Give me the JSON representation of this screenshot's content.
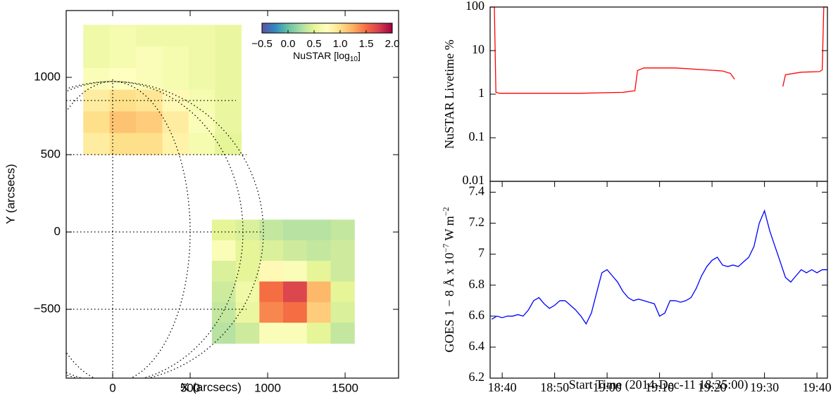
{
  "chart_data": [
    {
      "type": "heatmap",
      "x_label": "X (arcsecs)",
      "y_label": "Y (arcsecs)",
      "xlim": [
        -300,
        1845
      ],
      "ylim": [
        -945,
        1432
      ],
      "xticks": [
        0,
        500,
        1000,
        1500
      ],
      "yticks": [
        {
          "value": -500,
          "label": "−500"
        },
        0,
        500,
        1000
      ],
      "regions": [
        {
          "xlim": [
            -190,
            830
          ],
          "ylim": [
            500,
            1340
          ],
          "values": [
            [
              0.6,
              0.65,
              0.6,
              0.6,
              0.6,
              0.55
            ],
            [
              0.6,
              0.65,
              0.7,
              0.65,
              0.6,
              0.55
            ],
            [
              0.7,
              0.75,
              0.7,
              0.65,
              0.6,
              0.55
            ],
            [
              0.9,
              1.0,
              0.95,
              0.8,
              0.65,
              0.55
            ],
            [
              1.0,
              1.15,
              1.1,
              0.9,
              0.7,
              0.55
            ],
            [
              0.9,
              1.0,
              1.0,
              0.85,
              0.65,
              0.5
            ]
          ]
        },
        {
          "xlim": [
            640,
            1560
          ],
          "ylim": [
            -720,
            80
          ],
          "values": [
            [
              0.5,
              0.45,
              0.35,
              0.3,
              0.3,
              0.35
            ],
            [
              0.7,
              0.5,
              0.45,
              0.4,
              0.35,
              0.4
            ],
            [
              0.45,
              0.5,
              0.8,
              0.7,
              0.5,
              0.4
            ],
            [
              0.4,
              0.6,
              1.5,
              1.7,
              1.2,
              0.5
            ],
            [
              0.35,
              0.55,
              1.4,
              1.5,
              1.1,
              0.45
            ],
            [
              0.3,
              0.4,
              0.7,
              0.7,
              0.5,
              0.35
            ]
          ]
        }
      ],
      "colorbar": {
        "lim": [
          -0.5,
          2.0
        ],
        "ticks": [
          {
            "value": -0.5,
            "label": "−0.5"
          },
          {
            "value": 0,
            "label": "0.0"
          },
          0.5,
          {
            "value": 1,
            "label": "1.0"
          },
          1.5,
          {
            "value": 2,
            "label": "2.0"
          }
        ],
        "label": {
          "text": "NuSTAR [log",
          "subscript": "10",
          "suffix": "]"
        }
      }
    },
    {
      "type": "line",
      "log_y": true,
      "y_label": "NuSTAR Livetime %",
      "xlim": [
        2.7,
        67
      ],
      "ylim": [
        0.01,
        100
      ],
      "yticks": [
        0.01,
        0.1,
        1,
        10,
        100
      ],
      "x": [
        2.7,
        3.5,
        3.8,
        4.5,
        10,
        20,
        28,
        30.3,
        30.8,
        32,
        38,
        44,
        47,
        48.5,
        49.3,
        49.5,
        58.3,
        58.5,
        59,
        62,
        65.5,
        66,
        66.3,
        67
      ],
      "series": [
        {
          "color": "#ff0000",
          "values": [
            100,
            100,
            1.1,
            1.05,
            1.05,
            1.05,
            1.1,
            1.2,
            3.5,
            4.0,
            4.0,
            3.6,
            3.4,
            3.0,
            2.2,
            null,
            null,
            1.5,
            2.8,
            3.2,
            3.3,
            3.6,
            100,
            100
          ]
        }
      ]
    },
    {
      "type": "line",
      "x_label": "Start Time (2014-Dec-11 18:35:00)",
      "y_label": {
        "text": "GOES 1 − 8 Å x 10",
        "exp1": "−7",
        "mid": " W m",
        "exp2": "−2"
      },
      "xlim": [
        2.7,
        67
      ],
      "ylim": [
        6.2,
        7.47
      ],
      "xticks": [
        {
          "value": 5,
          "label": "18:40"
        },
        {
          "value": 15,
          "label": "18:50"
        },
        {
          "value": 25,
          "label": "19:00"
        },
        {
          "value": 35,
          "label": "19:10"
        },
        {
          "value": 45,
          "label": "19:20"
        },
        {
          "value": 55,
          "label": "19:30"
        },
        {
          "value": 65,
          "label": "19:40"
        }
      ],
      "yticks": [
        6.2,
        6.4,
        6.6,
        6.8,
        7,
        7.2,
        7.4
      ],
      "x": [
        3,
        4,
        5,
        6,
        7,
        8,
        9,
        10,
        11,
        12,
        13,
        14,
        15,
        16,
        17,
        18,
        19,
        20,
        21,
        22,
        23,
        24,
        25,
        26,
        27,
        28,
        29,
        30,
        31,
        32,
        33,
        34,
        35,
        36,
        37,
        38,
        39,
        40,
        41,
        42,
        43,
        44,
        45,
        46,
        47,
        48,
        49,
        50,
        51,
        52,
        53,
        54,
        55,
        56,
        57,
        58,
        59,
        60,
        61,
        62,
        63,
        64,
        65,
        66,
        67
      ],
      "series": [
        {
          "color": "#0000ff",
          "values": [
            6.58,
            6.6,
            6.59,
            6.6,
            6.6,
            6.61,
            6.6,
            6.64,
            6.7,
            6.72,
            6.68,
            6.65,
            6.67,
            6.7,
            6.7,
            6.67,
            6.64,
            6.6,
            6.55,
            6.62,
            6.75,
            6.88,
            6.9,
            6.86,
            6.82,
            6.76,
            6.72,
            6.7,
            6.71,
            6.7,
            6.69,
            6.68,
            6.6,
            6.62,
            6.7,
            6.7,
            6.69,
            6.7,
            6.72,
            6.78,
            6.86,
            6.92,
            6.96,
            6.98,
            6.93,
            6.92,
            6.93,
            6.92,
            6.95,
            6.98,
            7.05,
            7.2,
            7.28,
            7.15,
            7.05,
            6.95,
            6.85,
            6.82,
            6.86,
            6.9,
            6.88,
            6.9,
            6.88,
            6.9,
            6.9
          ]
        }
      ]
    }
  ]
}
